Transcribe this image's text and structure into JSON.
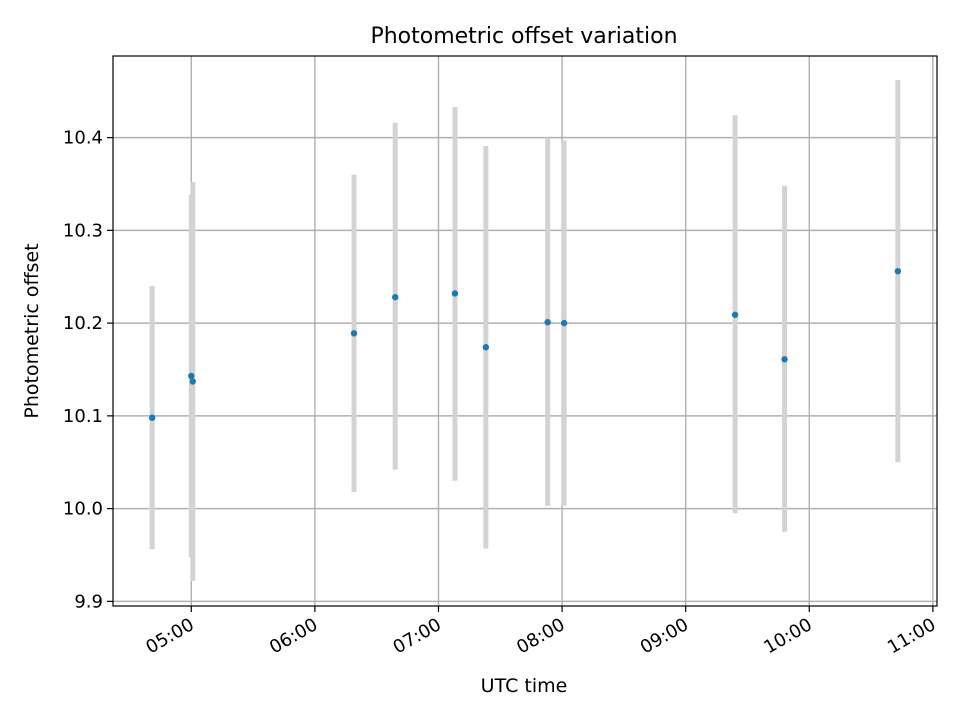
{
  "chart_data": {
    "type": "scatter",
    "title": "Photometric offset variation",
    "xlabel": "UTC time",
    "ylabel": "Photometric offset",
    "xlim": [
      "04:22",
      "11:02"
    ],
    "ylim": [
      9.895,
      10.488
    ],
    "grid": true,
    "x_ticks": [
      "05:00",
      "06:00",
      "07:00",
      "08:00",
      "09:00",
      "10:00",
      "11:00"
    ],
    "y_ticks": [
      9.9,
      10.0,
      10.1,
      10.2,
      10.3,
      10.4
    ],
    "y_tick_labels": [
      "9.9",
      "10.0",
      "10.1",
      "10.2",
      "10.3",
      "10.4"
    ],
    "points": [
      {
        "time": "04:41",
        "value": 10.098,
        "err_low": 9.956,
        "err_high": 10.24
      },
      {
        "time": "05:00",
        "value": 10.143,
        "err_low": 9.948,
        "err_high": 10.338
      },
      {
        "time": "05:00",
        "value": 10.137,
        "err_low": 9.922,
        "err_high": 10.352
      },
      {
        "time": "06:19",
        "value": 10.189,
        "err_low": 10.018,
        "err_high": 10.36
      },
      {
        "time": "06:39",
        "value": 10.228,
        "err_low": 10.042,
        "err_high": 10.416
      },
      {
        "time": "07:08",
        "value": 10.232,
        "err_low": 10.03,
        "err_high": 10.433
      },
      {
        "time": "07:23",
        "value": 10.174,
        "err_low": 9.957,
        "err_high": 10.391
      },
      {
        "time": "07:53",
        "value": 10.201,
        "err_low": 10.003,
        "err_high": 10.4
      },
      {
        "time": "08:01",
        "value": 10.2,
        "err_low": 10.003,
        "err_high": 10.397
      },
      {
        "time": "09:24",
        "value": 10.209,
        "err_low": 9.995,
        "err_high": 10.424
      },
      {
        "time": "09:48",
        "value": 10.161,
        "err_low": 9.975,
        "err_high": 10.348
      },
      {
        "time": "10:43",
        "value": 10.256,
        "err_low": 10.05,
        "err_high": 10.462
      }
    ],
    "marker_color": "#1f77b4",
    "errorbar_color": "#d3d3d3",
    "grid_color": "#b0b0b0"
  }
}
